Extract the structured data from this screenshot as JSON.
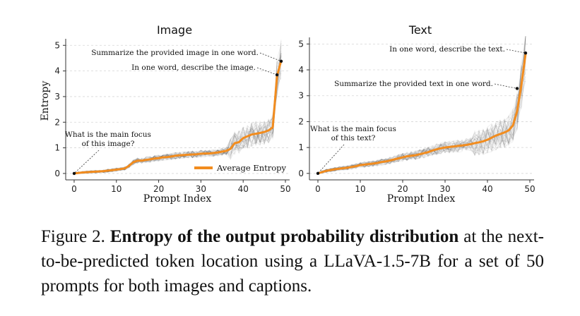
{
  "chart_data": [
    {
      "type": "line",
      "title": "Image",
      "xlabel": "Prompt Index",
      "ylabel": "Entropy",
      "xlim": [
        -2,
        51
      ],
      "ylim": [
        -0.25,
        5.2
      ],
      "xticks": [
        0,
        10,
        20,
        30,
        40,
        50
      ],
      "yticks": [
        0,
        1,
        2,
        3,
        4,
        5
      ],
      "grid": "horizontal dashed",
      "legend": "lower-right",
      "series": [
        {
          "name": "Average Entropy",
          "color": "#f28c1e",
          "x": [
            0,
            1,
            2,
            3,
            4,
            5,
            6,
            7,
            8,
            9,
            10,
            11,
            12,
            13,
            14,
            15,
            16,
            17,
            18,
            19,
            20,
            21,
            22,
            23,
            24,
            25,
            26,
            27,
            28,
            29,
            30,
            31,
            32,
            33,
            34,
            35,
            36,
            37,
            38,
            39,
            40,
            41,
            42,
            43,
            44,
            45,
            46,
            47,
            48,
            49
          ],
          "values": [
            0.0,
            0.02,
            0.04,
            0.05,
            0.06,
            0.07,
            0.08,
            0.09,
            0.11,
            0.13,
            0.15,
            0.17,
            0.2,
            0.3,
            0.44,
            0.5,
            0.5,
            0.53,
            0.55,
            0.58,
            0.6,
            0.63,
            0.64,
            0.66,
            0.69,
            0.71,
            0.72,
            0.73,
            0.74,
            0.75,
            0.77,
            0.78,
            0.78,
            0.8,
            0.82,
            0.85,
            0.88,
            0.96,
            1.18,
            1.22,
            1.38,
            1.45,
            1.52,
            1.55,
            1.58,
            1.62,
            1.68,
            1.8,
            3.8,
            4.4
          ]
        }
      ],
      "annotations": [
        {
          "text": "Summarize the provided image in one word.",
          "x": 49,
          "y": 4.38
        },
        {
          "text": "In one word, describe the image.",
          "x": 48,
          "y": 3.85
        },
        {
          "text_lines": [
            "What is the main focus",
            "of this image?"
          ],
          "x": 0,
          "y": 0
        }
      ]
    },
    {
      "type": "line",
      "title": "Text",
      "xlabel": "Prompt Index",
      "ylabel": "",
      "xlim": [
        -2,
        51
      ],
      "ylim": [
        -0.25,
        5.2
      ],
      "xticks": [
        0,
        10,
        20,
        30,
        40,
        50
      ],
      "yticks": [
        0,
        1,
        2,
        3,
        4,
        5
      ],
      "grid": "horizontal dashed",
      "series": [
        {
          "name": "Average Entropy",
          "color": "#f28c1e",
          "x": [
            0,
            1,
            2,
            3,
            4,
            5,
            6,
            7,
            8,
            9,
            10,
            11,
            12,
            13,
            14,
            15,
            16,
            17,
            18,
            19,
            20,
            21,
            22,
            23,
            24,
            25,
            26,
            27,
            28,
            29,
            30,
            31,
            32,
            33,
            34,
            35,
            36,
            37,
            38,
            39,
            40,
            41,
            42,
            43,
            44,
            45,
            46,
            47,
            48,
            49
          ],
          "values": [
            0.0,
            0.05,
            0.1,
            0.13,
            0.16,
            0.18,
            0.2,
            0.22,
            0.25,
            0.28,
            0.32,
            0.34,
            0.36,
            0.38,
            0.4,
            0.44,
            0.46,
            0.5,
            0.54,
            0.58,
            0.62,
            0.66,
            0.68,
            0.7,
            0.74,
            0.78,
            0.82,
            0.88,
            0.93,
            0.97,
            1.0,
            1.02,
            1.04,
            1.06,
            1.08,
            1.1,
            1.13,
            1.17,
            1.2,
            1.24,
            1.3,
            1.38,
            1.46,
            1.52,
            1.58,
            1.66,
            1.85,
            2.4,
            3.4,
            4.62
          ]
        }
      ],
      "annotations": [
        {
          "text": "In one word, describe the text.",
          "x": 49,
          "y": 4.65
        },
        {
          "text": "Summarize the provided text in one word.",
          "x": 47,
          "y": 3.28
        },
        {
          "text_lines": [
            "What is the main focus",
            "of this text?"
          ],
          "x": 0,
          "y": 0
        }
      ]
    }
  ],
  "caption": {
    "prefix": "Figure 2. ",
    "bold": "Entropy of the output probability distribution",
    "rest": " at the next-to-be-predicted token location using a LLaVA-1.5-7B for a set of 50 prompts for both images and captions."
  }
}
